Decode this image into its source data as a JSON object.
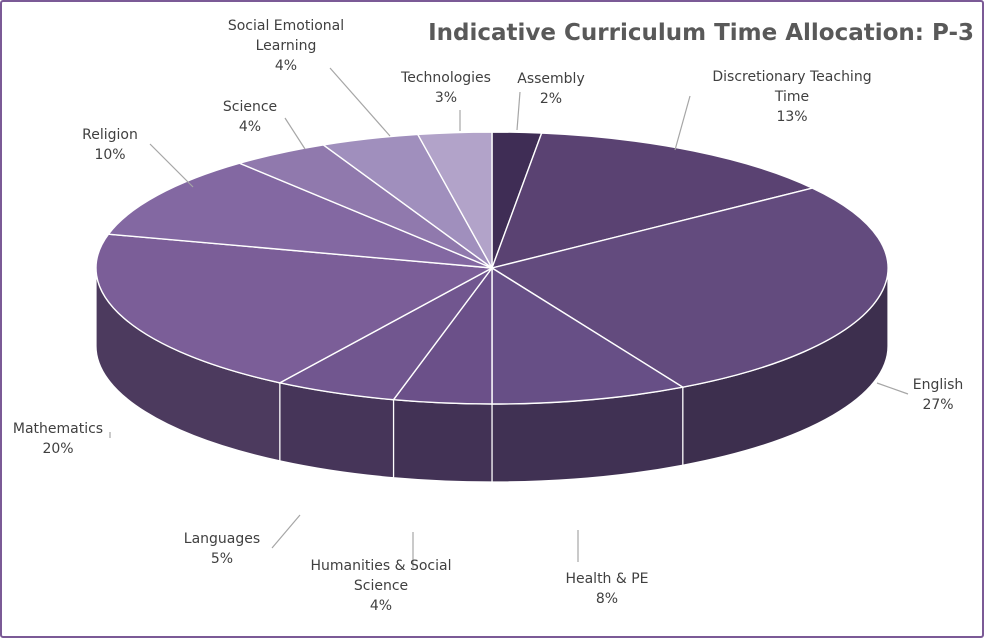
{
  "chart_data": {
    "type": "pie",
    "title": "Indicative Curriculum Time Allocation: P-3",
    "slices": [
      {
        "name": "Assembly",
        "label": [
          "Assembly"
        ],
        "value": 2,
        "value_label": "2%",
        "color": "#3f2d55"
      },
      {
        "name": "Discretionary Teaching Time",
        "label": [
          "Discretionary Teaching",
          "Time"
        ],
        "value": 13,
        "value_label": "13%",
        "color": "#5a4272"
      },
      {
        "name": "English",
        "label": [
          "English"
        ],
        "value": 27,
        "value_label": "27%",
        "color": "#634b7e"
      },
      {
        "name": "Health & PE",
        "label": [
          "Health & PE"
        ],
        "value": 8,
        "value_label": "8%",
        "color": "#674f86"
      },
      {
        "name": "Humanities & Social Science",
        "label": [
          "Humanities & Social",
          "Science"
        ],
        "value": 4,
        "value_label": "4%",
        "color": "#6b5089"
      },
      {
        "name": "Languages",
        "label": [
          "Languages"
        ],
        "value": 5,
        "value_label": "5%",
        "color": "#71568f"
      },
      {
        "name": "Mathematics",
        "label": [
          "Mathematics"
        ],
        "value": 20,
        "value_label": "20%",
        "color": "#7b5e98"
      },
      {
        "name": "Religion",
        "label": [
          "Religion"
        ],
        "value": 10,
        "value_label": "10%",
        "color": "#8368a2"
      },
      {
        "name": "Science",
        "label": [
          "Science"
        ],
        "value": 4,
        "value_label": "4%",
        "color": "#9079ad"
      },
      {
        "name": "Social Emotional Learning",
        "label": [
          "Social Emotional",
          "Learning"
        ],
        "value": 4,
        "value_label": "4%",
        "color": "#a08fbd"
      },
      {
        "name": "Technologies",
        "label": [
          "Technologies"
        ],
        "value": 3,
        "value_label": "3%",
        "color": "#b2a3c9"
      }
    ],
    "start_angle_deg": 0,
    "direction": "clockwise",
    "style": "3d-exploded-view",
    "legend": "none"
  }
}
